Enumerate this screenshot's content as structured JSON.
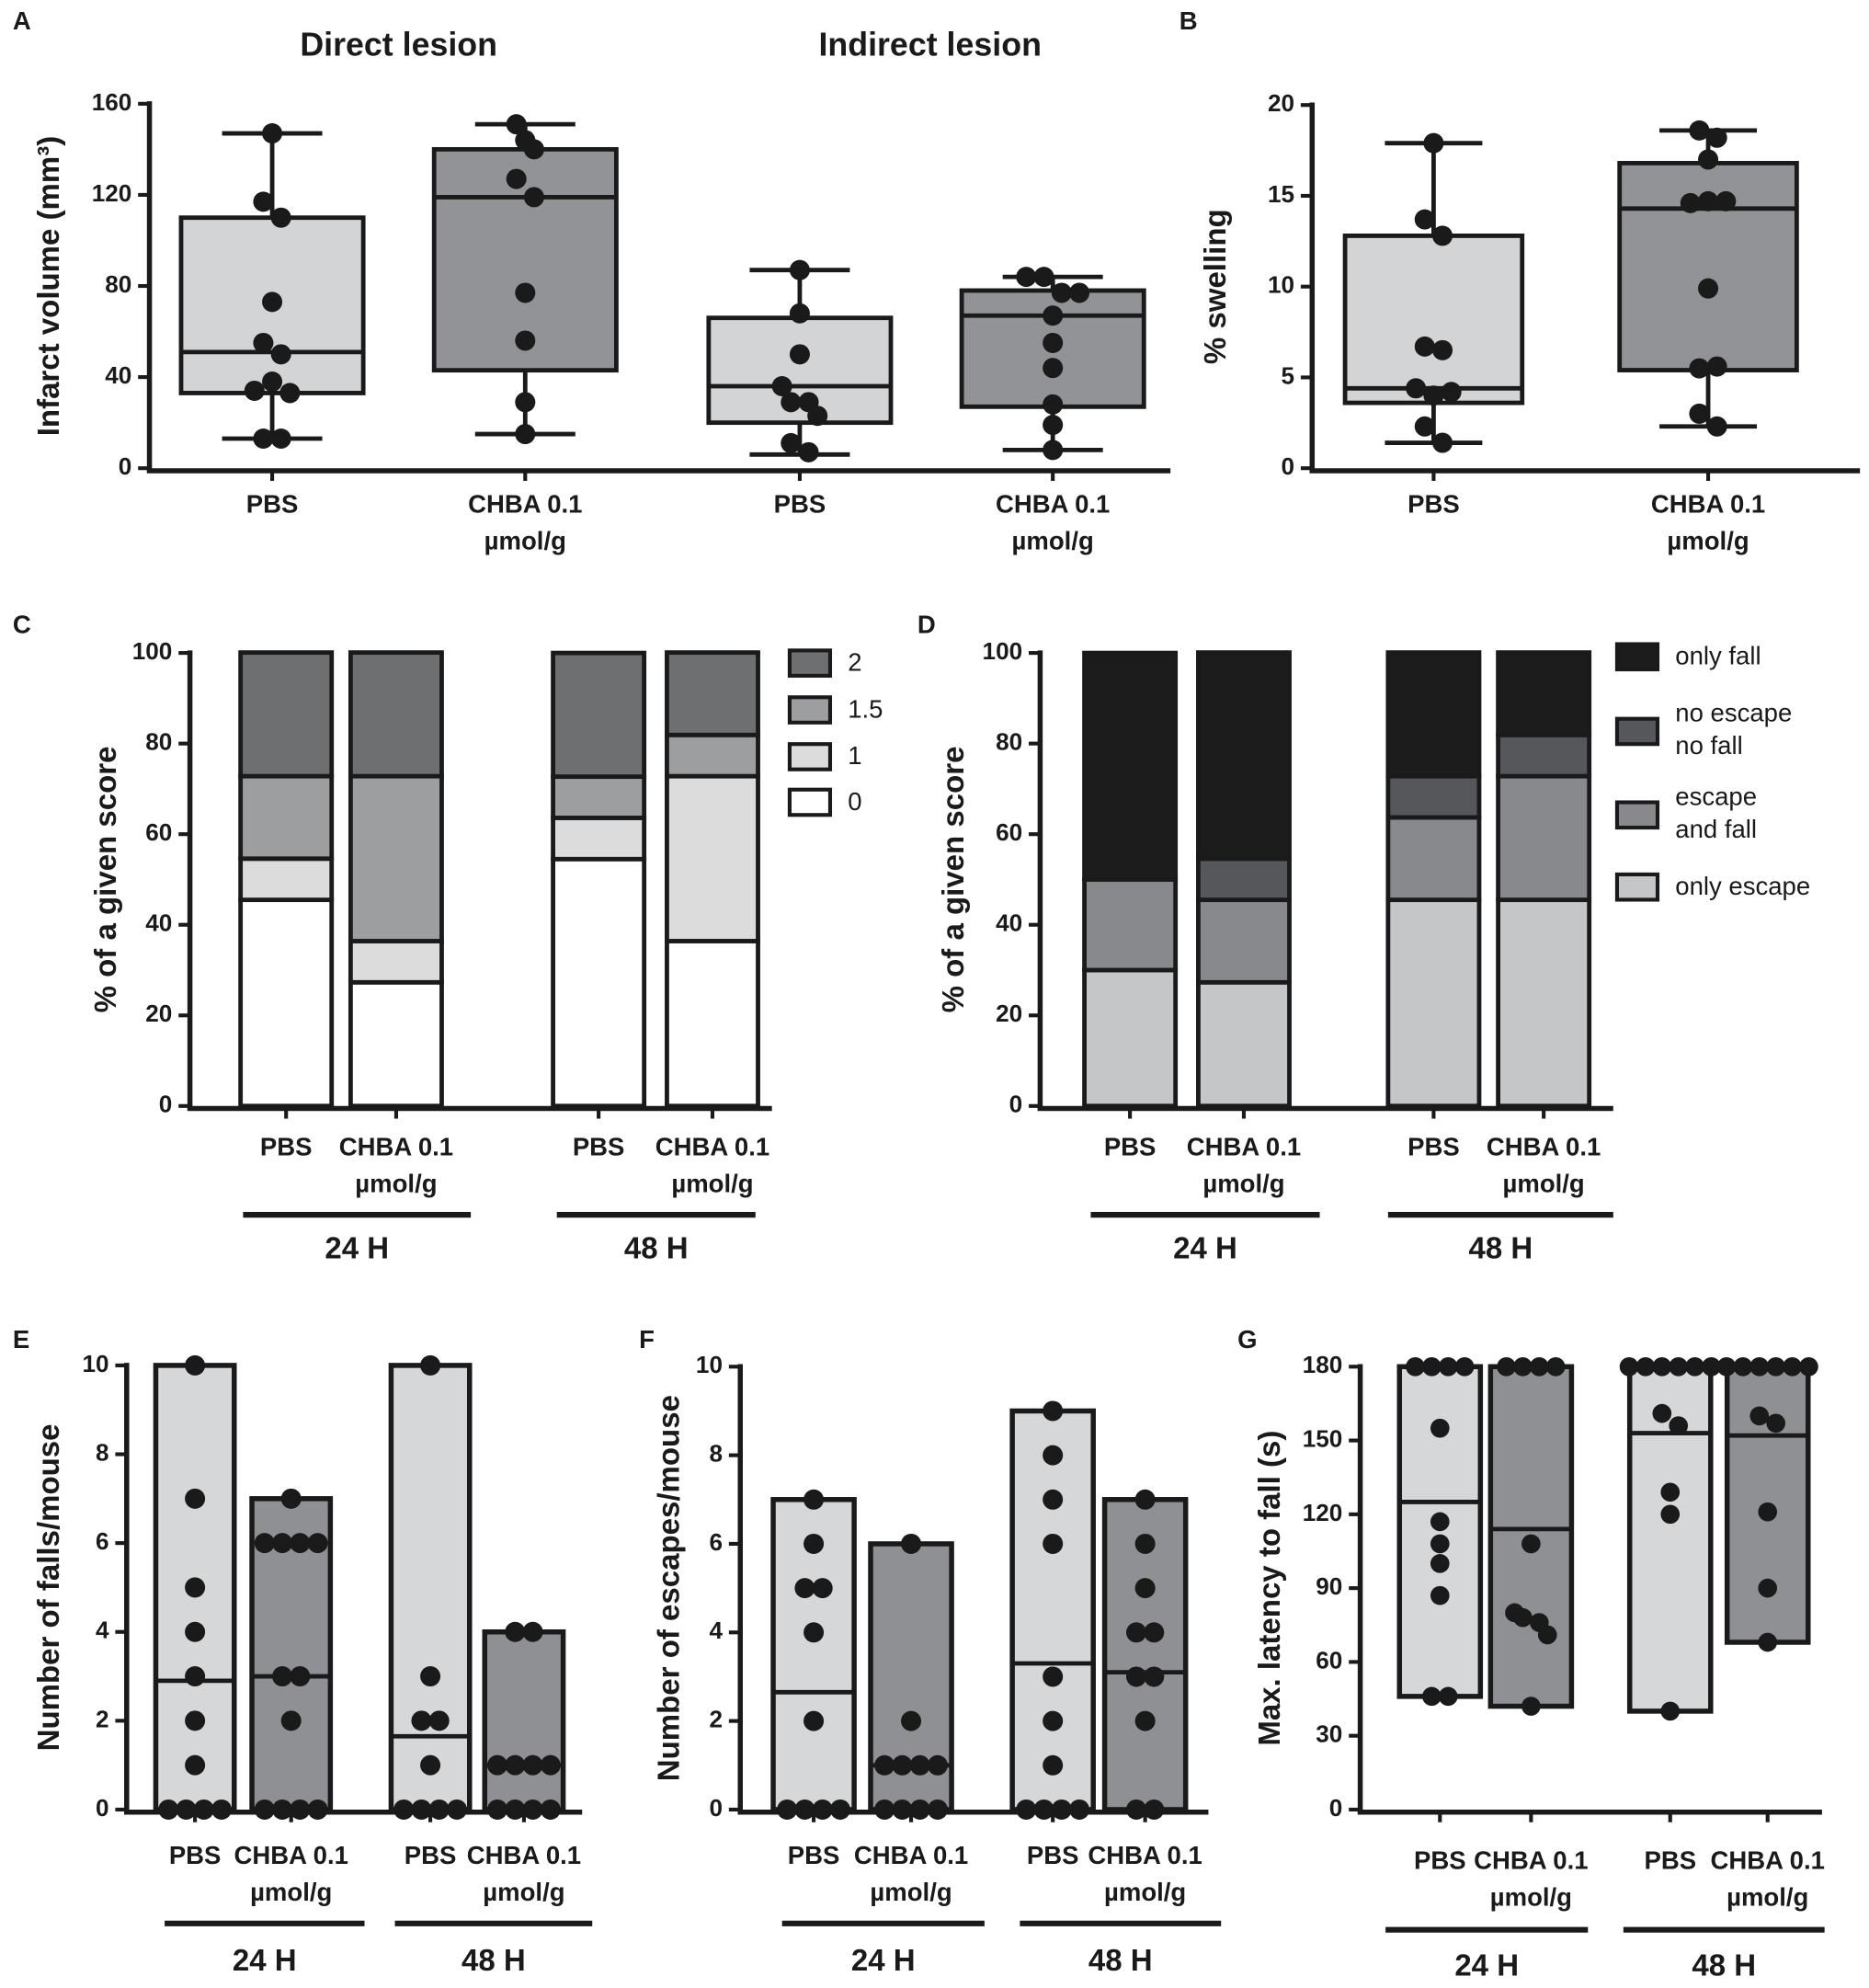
{
  "chart_data": [
    {
      "panel": "A",
      "type": "box",
      "ylabel": "Infarct volume (mm³)",
      "group_labels": [
        "Direct lesion",
        "Indirect lesion"
      ],
      "categories": [
        "PBS",
        "CHBA 0.1 µmol/g",
        "PBS",
        "CHBA 0.1 µmol/g"
      ],
      "ylim": [
        0,
        160
      ],
      "yticks": [
        0,
        40,
        80,
        120,
        160
      ],
      "boxes": [
        {
          "color": "#d3d4d6",
          "min": 13,
          "q1": 33,
          "median": 51,
          "q3": 110,
          "max": 147,
          "points": [
            147,
            117,
            110,
            73,
            55,
            50,
            34,
            38,
            33,
            13,
            13
          ]
        },
        {
          "color": "#929396",
          "min": 15,
          "q1": 43,
          "median": 119,
          "q3": 140,
          "max": 151,
          "points": [
            151,
            144,
            140,
            127,
            119,
            77,
            56,
            29,
            15
          ]
        },
        {
          "color": "#d3d4d6",
          "min": 6,
          "q1": 20,
          "median": 36,
          "q3": 66,
          "max": 87,
          "points": [
            87,
            68,
            50,
            36,
            29,
            29,
            23,
            11,
            7
          ]
        },
        {
          "color": "#929396",
          "min": 8,
          "q1": 27,
          "median": 67,
          "q3": 78,
          "max": 84,
          "points": [
            84,
            84,
            77,
            77,
            67,
            55,
            44,
            28,
            19,
            8
          ]
        }
      ]
    },
    {
      "panel": "B",
      "type": "box",
      "ylabel": "% swelling",
      "categories": [
        "PBS",
        "CHBA 0.1 µmol/g"
      ],
      "ylim": [
        0,
        20
      ],
      "yticks": [
        0,
        5,
        10,
        15,
        20
      ],
      "boxes": [
        {
          "color": "#d3d4d6",
          "min": 1.4,
          "q1": 3.6,
          "median": 4.4,
          "q3": 12.8,
          "max": 17.9,
          "points": [
            17.9,
            13.7,
            12.8,
            6.7,
            6.5,
            4.4,
            4.0,
            4.2,
            2.3,
            1.4
          ]
        },
        {
          "color": "#929396",
          "min": 2.3,
          "q1": 5.4,
          "median": 14.3,
          "q3": 16.8,
          "max": 18.6,
          "points": [
            18.6,
            18.2,
            17.0,
            14.6,
            14.7,
            14.7,
            9.9,
            5.5,
            5.6,
            3.0,
            2.3
          ]
        }
      ]
    },
    {
      "panel": "C",
      "type": "stacked_bar",
      "ylabel": "% of a given score",
      "group_labels": [
        "24 H",
        "48 H"
      ],
      "categories": [
        "PBS",
        "CHBA 0.1 µmol/g",
        "PBS",
        "CHBA 0.1 µmol/g"
      ],
      "ylim": [
        0,
        100
      ],
      "yticks": [
        0,
        20,
        40,
        60,
        80,
        100
      ],
      "series": [
        {
          "name": "0",
          "color": "#ffffff",
          "values": [
            45.5,
            27.3,
            54.5,
            36.4
          ]
        },
        {
          "name": "1",
          "color": "#dcdcdd",
          "values": [
            9.1,
            9.1,
            9.1,
            36.4
          ]
        },
        {
          "name": "1.5",
          "color": "#9d9ea0",
          "values": [
            18.2,
            36.4,
            9.1,
            9.1
          ]
        },
        {
          "name": "2",
          "color": "#6e6f71",
          "values": [
            27.3,
            27.3,
            27.3,
            18.2
          ]
        }
      ]
    },
    {
      "panel": "D",
      "type": "stacked_bar",
      "ylabel": "% of a given score",
      "group_labels": [
        "24 H",
        "48 H"
      ],
      "categories": [
        "PBS",
        "CHBA 0.1 µmol/g",
        "PBS",
        "CHBA 0.1 µmol/g"
      ],
      "ylim": [
        0,
        100
      ],
      "yticks": [
        0,
        20,
        40,
        60,
        80,
        100
      ],
      "series": [
        {
          "name": "only escape",
          "color": "#c5c6c8",
          "values": [
            30,
            27.3,
            45.5,
            45.5
          ]
        },
        {
          "name": "escape and fall",
          "color": "#88898c",
          "values": [
            20,
            18.2,
            18.2,
            27.3
          ]
        },
        {
          "name": "no escape no fall",
          "color": "#56575a",
          "values": [
            0,
            9.1,
            9.1,
            9.1
          ]
        },
        {
          "name": "only fall",
          "color": "#1c1c1c",
          "values": [
            50,
            45.5,
            27.3,
            18.2
          ]
        }
      ]
    },
    {
      "panel": "E",
      "type": "range_bar",
      "ylabel": "Number of falls/mouse",
      "group_labels": [
        "24 H",
        "48 H"
      ],
      "categories": [
        "PBS",
        "CHBA 0.1 µmol/g",
        "PBS",
        "CHBA 0.1 µmol/g"
      ],
      "ylim": [
        0,
        10
      ],
      "yticks": [
        0,
        2,
        4,
        6,
        8,
        10
      ],
      "bars": [
        {
          "color": "#d6d7d9",
          "min": 0,
          "max": 10,
          "median": 2.9,
          "points": [
            10,
            7,
            5,
            4,
            3,
            2,
            1,
            0,
            0,
            0,
            0
          ]
        },
        {
          "color": "#8f9093",
          "min": 0,
          "max": 7,
          "median": 3,
          "points": [
            7,
            6,
            6,
            6,
            6,
            3,
            3,
            2,
            0,
            0,
            0,
            0
          ]
        },
        {
          "color": "#d6d7d9",
          "min": 0,
          "max": 10,
          "median": 1.65,
          "points": [
            10,
            3,
            2,
            2,
            1,
            0,
            0,
            0,
            0
          ]
        },
        {
          "color": "#8f9093",
          "min": 0,
          "max": 4,
          "median": 1,
          "points": [
            4,
            4,
            1,
            1,
            1,
            1,
            0,
            0,
            0,
            0
          ]
        }
      ]
    },
    {
      "panel": "F",
      "type": "range_bar",
      "ylabel": "Number of escapes/mouse",
      "group_labels": [
        "24 H",
        "48 H"
      ],
      "categories": [
        "PBS",
        "CHBA 0.1 µmol/g",
        "PBS",
        "CHBA 0.1 µmol/g"
      ],
      "ylim": [
        0,
        10
      ],
      "yticks": [
        0,
        2,
        4,
        6,
        8,
        10
      ],
      "bars": [
        {
          "color": "#d6d7d9",
          "min": 0,
          "max": 7,
          "median": 2.65,
          "points": [
            7,
            6,
            5,
            5,
            4,
            2,
            0,
            0,
            0,
            0
          ]
        },
        {
          "color": "#8f9093",
          "min": 0,
          "max": 6,
          "median": 1,
          "points": [
            6,
            2,
            1,
            1,
            1,
            1,
            0,
            0,
            0,
            0
          ]
        },
        {
          "color": "#d6d7d9",
          "min": 0,
          "max": 9,
          "median": 3.3,
          "points": [
            9,
            8,
            7,
            6,
            3,
            2,
            1,
            0,
            0,
            0,
            0
          ]
        },
        {
          "color": "#8f9093",
          "min": 0,
          "max": 7,
          "median": 3.1,
          "points": [
            7,
            6,
            5,
            4,
            4,
            3,
            3,
            2,
            0,
            0
          ]
        }
      ]
    },
    {
      "panel": "G",
      "type": "range_bar",
      "ylabel": "Max. latency to fall (s)",
      "group_labels": [
        "24 H",
        "48 H"
      ],
      "categories": [
        "PBS",
        "CHBA 0.1 µmol/g",
        "PBS",
        "CHBA 0.1 µmol/g"
      ],
      "ylim": [
        0,
        180
      ],
      "yticks": [
        0,
        30,
        60,
        90,
        120,
        150,
        180
      ],
      "bars": [
        {
          "color": "#d6d7d9",
          "min": 46,
          "max": 180,
          "median": 125,
          "points": [
            180,
            180,
            180,
            180,
            155,
            117,
            108,
            100,
            87,
            46,
            46
          ]
        },
        {
          "color": "#8f9093",
          "min": 42,
          "max": 180,
          "median": 114,
          "points": [
            180,
            180,
            180,
            180,
            108,
            80,
            78,
            76,
            71,
            42
          ]
        },
        {
          "color": "#d6d7d9",
          "min": 40,
          "max": 180,
          "median": 153,
          "points": [
            180,
            180,
            180,
            180,
            180,
            180,
            161,
            156,
            129,
            120,
            40
          ]
        },
        {
          "color": "#8f9093",
          "min": 68,
          "max": 180,
          "median": 152,
          "points": [
            180,
            180,
            180,
            180,
            180,
            180,
            160,
            157,
            121,
            90,
            68
          ]
        }
      ]
    }
  ]
}
